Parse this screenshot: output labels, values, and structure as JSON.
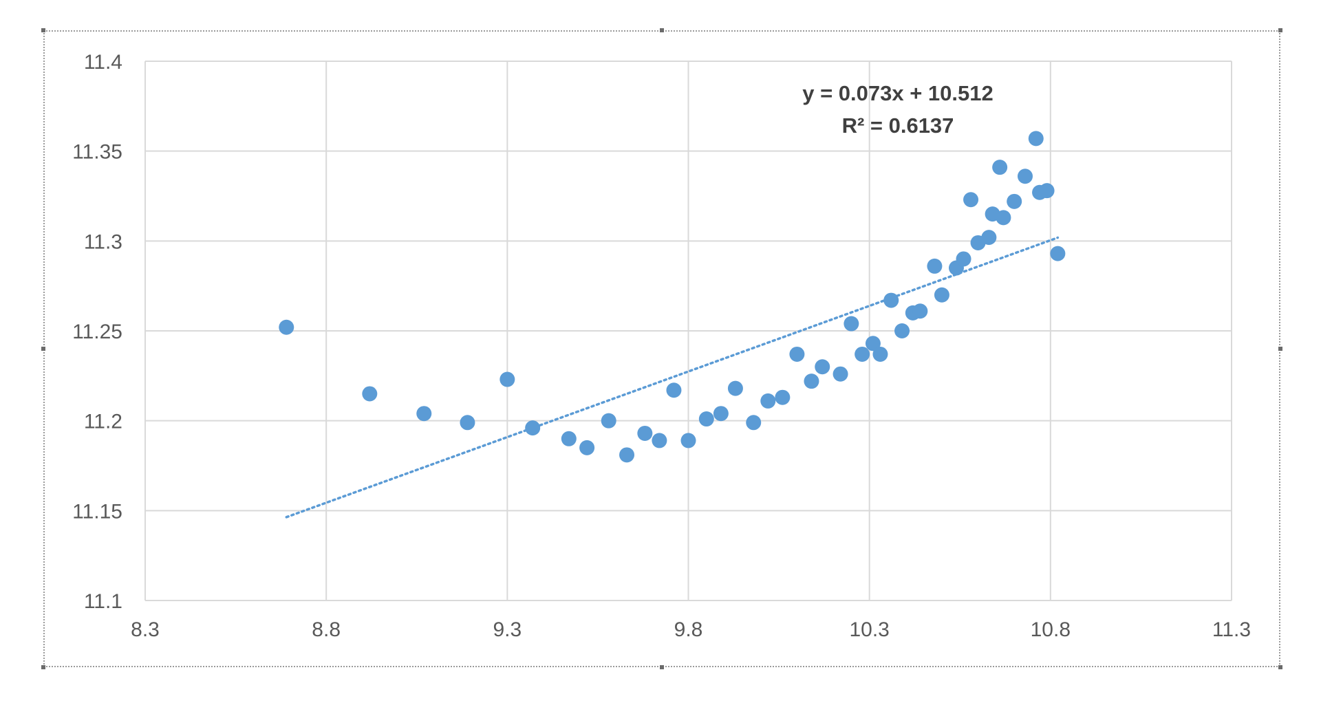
{
  "chart_data": {
    "type": "scatter",
    "title": "",
    "xlabel": "",
    "ylabel": "",
    "xlim": [
      8.3,
      11.3
    ],
    "ylim": [
      11.1,
      11.4
    ],
    "x_ticks": [
      "8.3",
      "8.8",
      "9.3",
      "9.8",
      "10.3",
      "10.8",
      "11.3"
    ],
    "y_ticks": [
      "11.1",
      "11.15",
      "11.2",
      "11.25",
      "11.3",
      "11.35",
      "11.4"
    ],
    "x_tick_values": [
      8.3,
      8.8,
      9.3,
      9.8,
      10.3,
      10.8,
      11.3
    ],
    "y_tick_values": [
      11.1,
      11.15,
      11.2,
      11.25,
      11.3,
      11.35,
      11.4
    ],
    "grid": true,
    "marker_color": "#5b9bd5",
    "trendline": {
      "style": "dotted",
      "color": "#5b9bd5",
      "slope": 0.073,
      "intercept": 10.512,
      "x_start": 8.69,
      "x_end": 10.82,
      "equation": "y = 0.073x + 10.512",
      "r_squared": "R² = 0.6137"
    },
    "series": [
      {
        "points": [
          [
            8.69,
            11.252
          ],
          [
            8.92,
            11.215
          ],
          [
            9.07,
            11.204
          ],
          [
            9.19,
            11.199
          ],
          [
            9.3,
            11.223
          ],
          [
            9.37,
            11.196
          ],
          [
            9.47,
            11.19
          ],
          [
            9.52,
            11.185
          ],
          [
            9.58,
            11.2
          ],
          [
            9.63,
            11.181
          ],
          [
            9.68,
            11.193
          ],
          [
            9.72,
            11.189
          ],
          [
            9.76,
            11.217
          ],
          [
            9.8,
            11.189
          ],
          [
            9.85,
            11.201
          ],
          [
            9.89,
            11.204
          ],
          [
            9.93,
            11.218
          ],
          [
            9.98,
            11.199
          ],
          [
            10.02,
            11.211
          ],
          [
            10.06,
            11.213
          ],
          [
            10.1,
            11.237
          ],
          [
            10.14,
            11.222
          ],
          [
            10.17,
            11.23
          ],
          [
            10.22,
            11.226
          ],
          [
            10.25,
            11.254
          ],
          [
            10.28,
            11.237
          ],
          [
            10.31,
            11.243
          ],
          [
            10.33,
            11.237
          ],
          [
            10.36,
            11.267
          ],
          [
            10.39,
            11.25
          ],
          [
            10.42,
            11.26
          ],
          [
            10.44,
            11.261
          ],
          [
            10.48,
            11.286
          ],
          [
            10.5,
            11.27
          ],
          [
            10.54,
            11.285
          ],
          [
            10.56,
            11.29
          ],
          [
            10.58,
            11.323
          ],
          [
            10.6,
            11.299
          ],
          [
            10.63,
            11.302
          ],
          [
            10.64,
            11.315
          ],
          [
            10.66,
            11.341
          ],
          [
            10.67,
            11.313
          ],
          [
            10.7,
            11.322
          ],
          [
            10.73,
            11.336
          ],
          [
            10.76,
            11.357
          ],
          [
            10.77,
            11.327
          ],
          [
            10.79,
            11.328
          ],
          [
            10.82,
            11.293
          ]
        ]
      }
    ]
  }
}
